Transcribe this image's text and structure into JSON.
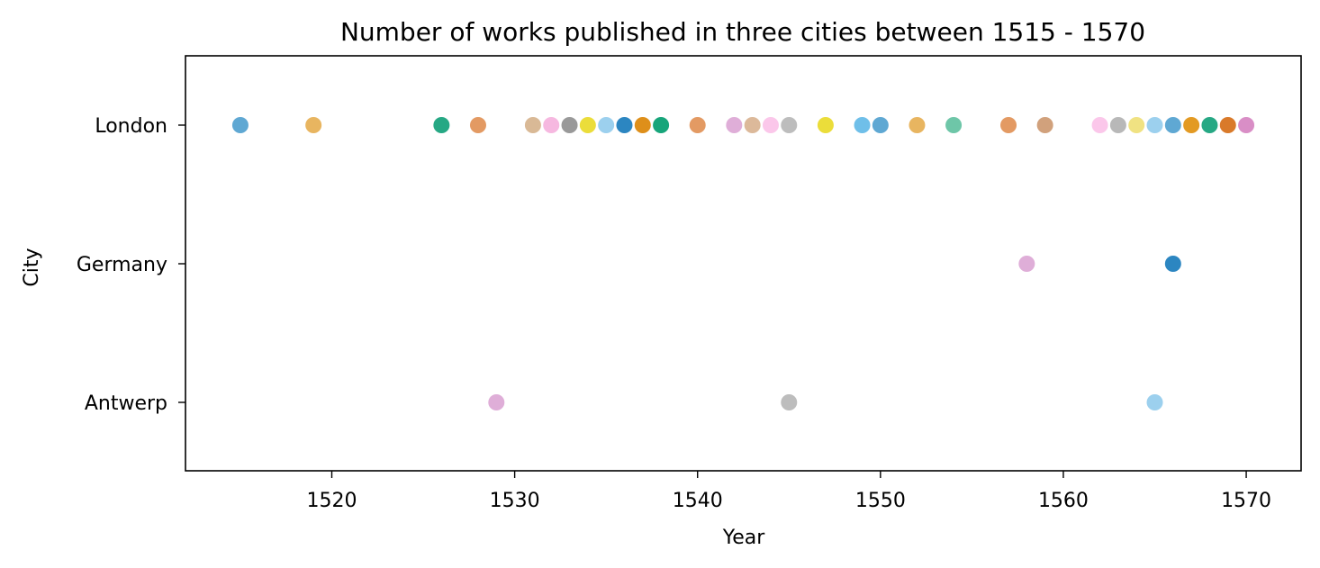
{
  "chart_data": {
    "type": "scatter",
    "title": "Number of works published in three cities between 1515 - 1570",
    "xlabel": "Year",
    "ylabel": "City",
    "xlim": [
      1512,
      1573
    ],
    "x_ticks": [
      1520,
      1530,
      1540,
      1550,
      1560,
      1570
    ],
    "categories": [
      "London",
      "Germany",
      "Antwerp"
    ],
    "grid": false,
    "points": [
      {
        "x": 1515,
        "y": "London",
        "color": "#5fa8d3"
      },
      {
        "x": 1519,
        "y": "London",
        "color": "#e8b560"
      },
      {
        "x": 1526,
        "y": "London",
        "color": "#26a884"
      },
      {
        "x": 1528,
        "y": "London",
        "color": "#e39a63"
      },
      {
        "x": 1531,
        "y": "London",
        "color": "#d9b996"
      },
      {
        "x": 1532,
        "y": "London",
        "color": "#f6b8e0"
      },
      {
        "x": 1533,
        "y": "London",
        "color": "#999999"
      },
      {
        "x": 1534,
        "y": "London",
        "color": "#ebdd3a"
      },
      {
        "x": 1535,
        "y": "London",
        "color": "#9cd0ee"
      },
      {
        "x": 1536,
        "y": "London",
        "color": "#2c86c1"
      },
      {
        "x": 1537,
        "y": "London",
        "color": "#de8f1a"
      },
      {
        "x": 1538,
        "y": "London",
        "color": "#17a57a"
      },
      {
        "x": 1540,
        "y": "London",
        "color": "#e39a63"
      },
      {
        "x": 1542,
        "y": "London",
        "color": "#dfaed8"
      },
      {
        "x": 1543,
        "y": "London",
        "color": "#dcb99a"
      },
      {
        "x": 1544,
        "y": "London",
        "color": "#fbc7ea"
      },
      {
        "x": 1545,
        "y": "London",
        "color": "#bdbdbd"
      },
      {
        "x": 1547,
        "y": "London",
        "color": "#ebdd3a"
      },
      {
        "x": 1549,
        "y": "London",
        "color": "#6fbfe9"
      },
      {
        "x": 1550,
        "y": "London",
        "color": "#5fa8d3"
      },
      {
        "x": 1552,
        "y": "London",
        "color": "#e8b560"
      },
      {
        "x": 1554,
        "y": "London",
        "color": "#6ec6a8"
      },
      {
        "x": 1557,
        "y": "London",
        "color": "#e39a63"
      },
      {
        "x": 1559,
        "y": "London",
        "color": "#d1a17c"
      },
      {
        "x": 1562,
        "y": "London",
        "color": "#fbc7ea"
      },
      {
        "x": 1563,
        "y": "London",
        "color": "#b8b8b8"
      },
      {
        "x": 1564,
        "y": "London",
        "color": "#f0e282"
      },
      {
        "x": 1565,
        "y": "London",
        "color": "#9cd0ee"
      },
      {
        "x": 1566,
        "y": "London",
        "color": "#5fa8d3"
      },
      {
        "x": 1567,
        "y": "London",
        "color": "#e39a23"
      },
      {
        "x": 1568,
        "y": "London",
        "color": "#26a884"
      },
      {
        "x": 1569,
        "y": "London",
        "color": "#d97a2a"
      },
      {
        "x": 1570,
        "y": "London",
        "color": "#d98ec6"
      },
      {
        "x": 1558,
        "y": "Germany",
        "color": "#dfaed8"
      },
      {
        "x": 1566,
        "y": "Germany",
        "color": "#2c86c1"
      },
      {
        "x": 1529,
        "y": "Antwerp",
        "color": "#dfaed8"
      },
      {
        "x": 1545,
        "y": "Antwerp",
        "color": "#bdbdbd"
      },
      {
        "x": 1565,
        "y": "Antwerp",
        "color": "#9cd0ee"
      }
    ]
  }
}
